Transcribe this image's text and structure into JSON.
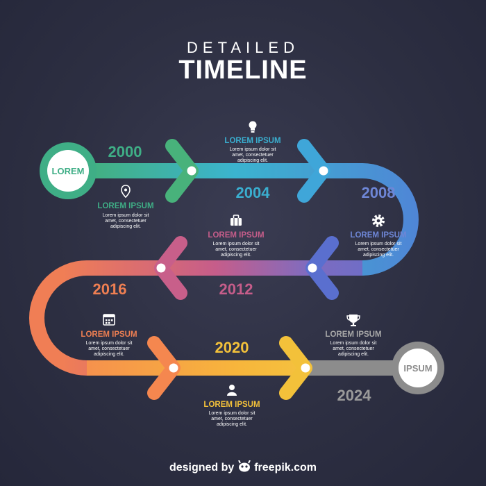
{
  "title": {
    "line1": "DETAILED",
    "line2": "TIMELINE"
  },
  "start_label": "LOREM",
  "end_label": "IPSUM",
  "milestones": [
    {
      "year": "2000",
      "label": "LOREM IPSUM",
      "text": [
        "Lorem ipsum dolor sit",
        "amet, consectetuer",
        "adipiscing elit."
      ],
      "icon": "map-pin-icon",
      "color": "#3fae86"
    },
    {
      "year": "2004",
      "label": "LOREM IPSUM",
      "text": [
        "Lorem ipsum dolor sit",
        "amet, consectetuer",
        "adipiscing elit."
      ],
      "icon": "lightbulb-icon",
      "color": "#3aaecf"
    },
    {
      "year": "2008",
      "label": "LOREM IPSUM",
      "text": [
        "Lorem ipsum dolor sit",
        "amet, consectetuer",
        "adipiscing elit."
      ],
      "icon": "gear-icon",
      "color": "#5e7fd0"
    },
    {
      "year": "2012",
      "label": "LOREM IPSUM",
      "text": [
        "Lorem ipsum dolor sit",
        "amet, consectetuer",
        "adipiscing elit."
      ],
      "icon": "briefcase-icon",
      "color": "#c65d8a"
    },
    {
      "year": "2016",
      "label": "LOREM IPSUM",
      "text": [
        "Lorem ipsum dolor sit",
        "amet, consectetuer",
        "adipiscing elit."
      ],
      "icon": "calendar-icon",
      "color": "#ef7f52"
    },
    {
      "year": "2020",
      "label": "LOREM IPSUM",
      "text": [
        "Lorem ipsum dolor sit",
        "amet, consectetuer",
        "adipiscing elit."
      ],
      "icon": "person-icon",
      "color": "#f3c13a"
    },
    {
      "year": "2024",
      "label": "LOREM IPSUM",
      "text": [
        "Lorem ipsum dolor sit",
        "amet, consectetuer",
        "adipiscing elit."
      ],
      "icon": "trophy-icon",
      "color": "#8f8f8f"
    }
  ],
  "footer": {
    "prefix": "designed by",
    "brand": "freepik.com",
    "icon": "freepik-logo-icon"
  }
}
